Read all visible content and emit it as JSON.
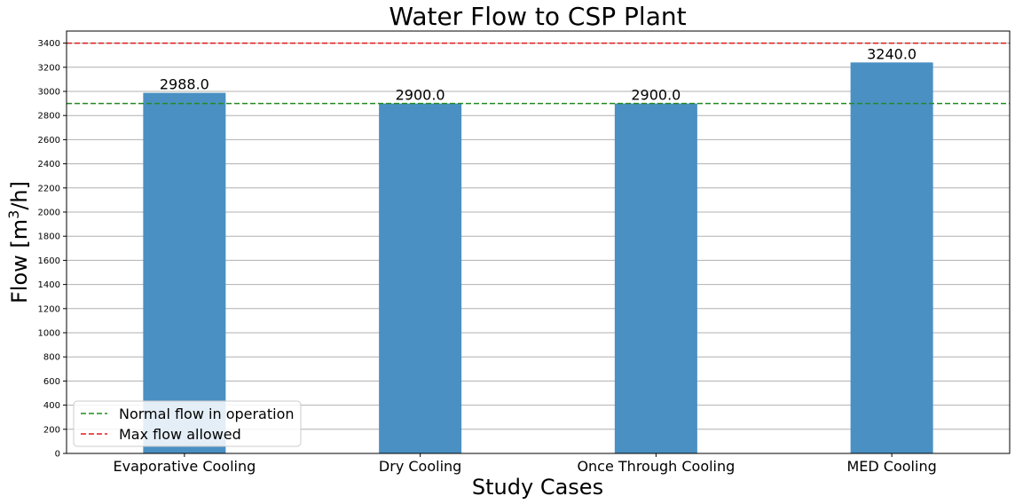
{
  "chart_data": {
    "type": "bar",
    "title": "Water Flow to CSP Plant",
    "xlabel": "Study Cases",
    "ylabel": "Flow [m³/h]",
    "categories": [
      "Evaporative Cooling",
      "Dry Cooling",
      "Once Through Cooling",
      "MED Cooling"
    ],
    "values": [
      2988.0,
      2900.0,
      2900.0,
      3240.0
    ],
    "data_labels": [
      "2988.0",
      "2900.0",
      "2900.0",
      "3240.0"
    ],
    "ylim": [
      0,
      3500
    ],
    "yticks": [
      0,
      200,
      400,
      600,
      800,
      1000,
      1200,
      1400,
      1600,
      1800,
      2000,
      2200,
      2400,
      2600,
      2800,
      3000,
      3200,
      3400
    ],
    "grid": "horizontal",
    "bar_color": "#4a90c2",
    "reference_lines": [
      {
        "name": "Normal flow in operation",
        "value": 2900,
        "color": "#228b22",
        "style": "dashed"
      },
      {
        "name": "Max flow allowed",
        "value": 3400,
        "color": "#e31a1c",
        "style": "dashed"
      }
    ],
    "legend_position": "lower-left"
  }
}
